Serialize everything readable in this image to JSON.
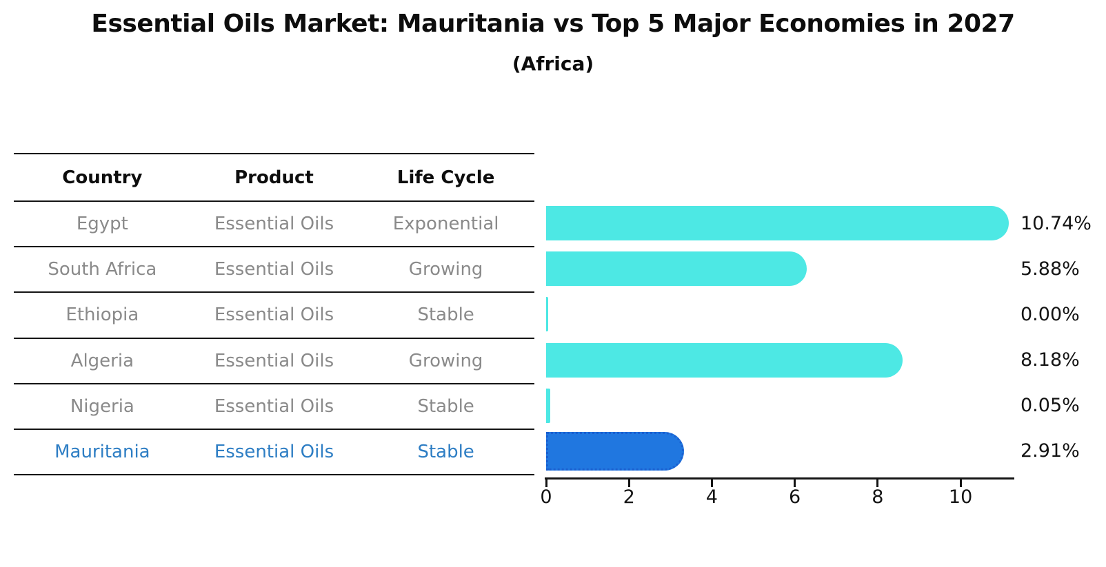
{
  "title": "Essential Oils Market: Mauritania vs Top 5 Major Economies in 2027",
  "subtitle": "(Africa)",
  "table": {
    "headers": [
      "Country",
      "Product",
      "Life Cycle"
    ]
  },
  "chart_data": {
    "type": "bar",
    "orientation": "horizontal",
    "title": "Essential Oils Market: Mauritania vs Top 5 Major Economies in 2027",
    "subtitle": "(Africa)",
    "categories": [
      "Egypt",
      "South Africa",
      "Ethiopia",
      "Algeria",
      "Nigeria",
      "Mauritania"
    ],
    "rows": [
      {
        "country": "Egypt",
        "product": "Essential Oils",
        "life_cycle": "Exponential",
        "value": 10.74,
        "label": "10.74%",
        "highlight": false
      },
      {
        "country": "South Africa",
        "product": "Essential Oils",
        "life_cycle": "Growing",
        "value": 5.88,
        "label": "5.88%",
        "highlight": false
      },
      {
        "country": "Ethiopia",
        "product": "Essential Oils",
        "life_cycle": "Stable",
        "value": 0.0,
        "label": "0.00%",
        "highlight": false
      },
      {
        "country": "Algeria",
        "product": "Essential Oils",
        "life_cycle": "Growing",
        "value": 8.18,
        "label": "8.18%",
        "highlight": false
      },
      {
        "country": "Nigeria",
        "product": "Essential Oils",
        "life_cycle": "Stable",
        "value": 0.05,
        "label": "0.05%",
        "highlight": false
      },
      {
        "country": "Mauritania",
        "product": "Essential Oils",
        "life_cycle": "Stable",
        "value": 2.91,
        "label": "2.91%",
        "highlight": true
      }
    ],
    "x_ticks": [
      0,
      2,
      4,
      6,
      8,
      10
    ],
    "xlim": [
      0,
      11.28
    ],
    "grid": false,
    "legend": "none",
    "colors": {
      "bar": "#4de8e4",
      "highlight_bar": "#2077e0",
      "highlight_border": "#1a5fd0",
      "highlight_text": "#2e7ec4",
      "row_text": "#8a8a8a",
      "axis": "#141414"
    }
  }
}
